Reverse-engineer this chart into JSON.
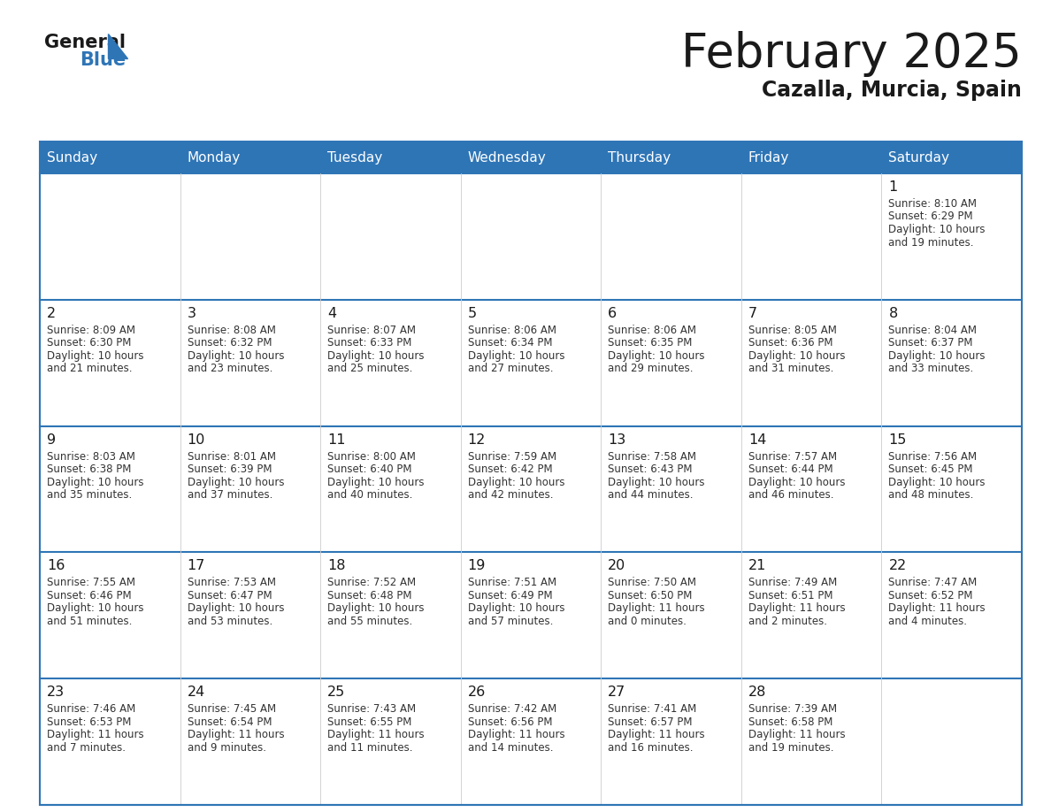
{
  "title": "February 2025",
  "subtitle": "Cazalla, Murcia, Spain",
  "header_bg": "#2E75B6",
  "header_text_color": "#FFFFFF",
  "border_color": "#2E75B6",
  "cell_bg": "#FFFFFF",
  "cell_bg_alt": "#F2F2F2",
  "text_color": "#333333",
  "days_of_week": [
    "Sunday",
    "Monday",
    "Tuesday",
    "Wednesday",
    "Thursday",
    "Friday",
    "Saturday"
  ],
  "calendar": [
    [
      null,
      null,
      null,
      null,
      null,
      null,
      {
        "day": "1",
        "sunrise": "8:10 AM",
        "sunset": "6:29 PM",
        "daylight": "10 hours and 19 minutes."
      }
    ],
    [
      {
        "day": "2",
        "sunrise": "8:09 AM",
        "sunset": "6:30 PM",
        "daylight": "10 hours and 21 minutes."
      },
      {
        "day": "3",
        "sunrise": "8:08 AM",
        "sunset": "6:32 PM",
        "daylight": "10 hours and 23 minutes."
      },
      {
        "day": "4",
        "sunrise": "8:07 AM",
        "sunset": "6:33 PM",
        "daylight": "10 hours and 25 minutes."
      },
      {
        "day": "5",
        "sunrise": "8:06 AM",
        "sunset": "6:34 PM",
        "daylight": "10 hours and 27 minutes."
      },
      {
        "day": "6",
        "sunrise": "8:06 AM",
        "sunset": "6:35 PM",
        "daylight": "10 hours and 29 minutes."
      },
      {
        "day": "7",
        "sunrise": "8:05 AM",
        "sunset": "6:36 PM",
        "daylight": "10 hours and 31 minutes."
      },
      {
        "day": "8",
        "sunrise": "8:04 AM",
        "sunset": "6:37 PM",
        "daylight": "10 hours and 33 minutes."
      }
    ],
    [
      {
        "day": "9",
        "sunrise": "8:03 AM",
        "sunset": "6:38 PM",
        "daylight": "10 hours and 35 minutes."
      },
      {
        "day": "10",
        "sunrise": "8:01 AM",
        "sunset": "6:39 PM",
        "daylight": "10 hours and 37 minutes."
      },
      {
        "day": "11",
        "sunrise": "8:00 AM",
        "sunset": "6:40 PM",
        "daylight": "10 hours and 40 minutes."
      },
      {
        "day": "12",
        "sunrise": "7:59 AM",
        "sunset": "6:42 PM",
        "daylight": "10 hours and 42 minutes."
      },
      {
        "day": "13",
        "sunrise": "7:58 AM",
        "sunset": "6:43 PM",
        "daylight": "10 hours and 44 minutes."
      },
      {
        "day": "14",
        "sunrise": "7:57 AM",
        "sunset": "6:44 PM",
        "daylight": "10 hours and 46 minutes."
      },
      {
        "day": "15",
        "sunrise": "7:56 AM",
        "sunset": "6:45 PM",
        "daylight": "10 hours and 48 minutes."
      }
    ],
    [
      {
        "day": "16",
        "sunrise": "7:55 AM",
        "sunset": "6:46 PM",
        "daylight": "10 hours and 51 minutes."
      },
      {
        "day": "17",
        "sunrise": "7:53 AM",
        "sunset": "6:47 PM",
        "daylight": "10 hours and 53 minutes."
      },
      {
        "day": "18",
        "sunrise": "7:52 AM",
        "sunset": "6:48 PM",
        "daylight": "10 hours and 55 minutes."
      },
      {
        "day": "19",
        "sunrise": "7:51 AM",
        "sunset": "6:49 PM",
        "daylight": "10 hours and 57 minutes."
      },
      {
        "day": "20",
        "sunrise": "7:50 AM",
        "sunset": "6:50 PM",
        "daylight": "11 hours and 0 minutes."
      },
      {
        "day": "21",
        "sunrise": "7:49 AM",
        "sunset": "6:51 PM",
        "daylight": "11 hours and 2 minutes."
      },
      {
        "day": "22",
        "sunrise": "7:47 AM",
        "sunset": "6:52 PM",
        "daylight": "11 hours and 4 minutes."
      }
    ],
    [
      {
        "day": "23",
        "sunrise": "7:46 AM",
        "sunset": "6:53 PM",
        "daylight": "11 hours and 7 minutes."
      },
      {
        "day": "24",
        "sunrise": "7:45 AM",
        "sunset": "6:54 PM",
        "daylight": "11 hours and 9 minutes."
      },
      {
        "day": "25",
        "sunrise": "7:43 AM",
        "sunset": "6:55 PM",
        "daylight": "11 hours and 11 minutes."
      },
      {
        "day": "26",
        "sunrise": "7:42 AM",
        "sunset": "6:56 PM",
        "daylight": "11 hours and 14 minutes."
      },
      {
        "day": "27",
        "sunrise": "7:41 AM",
        "sunset": "6:57 PM",
        "daylight": "11 hours and 16 minutes."
      },
      {
        "day": "28",
        "sunrise": "7:39 AM",
        "sunset": "6:58 PM",
        "daylight": "11 hours and 19 minutes."
      },
      null
    ]
  ]
}
